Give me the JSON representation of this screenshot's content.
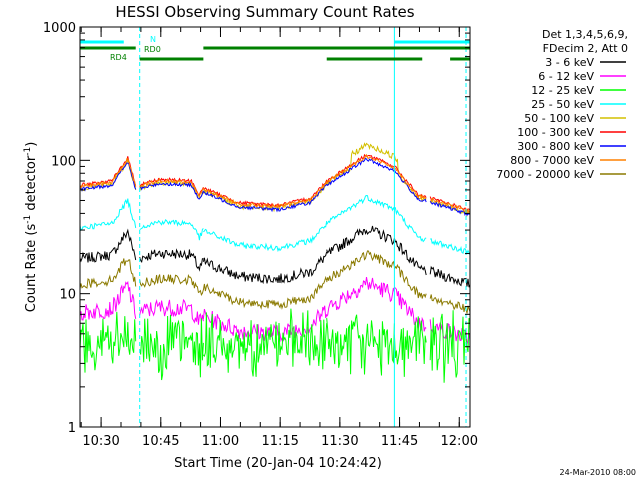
{
  "chart_data": {
    "type": "line",
    "title": "HESSI Observing Summary Count Rates",
    "xlabel": "Start Time (20-Jan-04 10:24:42)",
    "ylabel_parts": [
      "Count Rate (s",
      "-1",
      " detector",
      "-1",
      ")"
    ],
    "yscale": "log",
    "ylim": [
      1,
      1000
    ],
    "xlim_minutes_after_10_24_42": [
      0,
      98
    ],
    "x_tick_labels": [
      "10:30",
      "10:45",
      "11:00",
      "11:15",
      "11:30",
      "11:45",
      "12:00"
    ],
    "y_tick_labels": [
      "1",
      "10",
      "100",
      "1000"
    ],
    "legend_header": [
      "Det 1,3,4,5,6,9,",
      "FDecim 2, Att 0"
    ],
    "footer_date": "24-Mar-2010 08:00",
    "flag_labels": {
      "n": "N",
      "rd0": "RD0",
      "rd4": "RD4"
    },
    "colors": {
      "cyan_flag": "#00ffff",
      "green_flag": "#008000",
      "axis": "#000000"
    },
    "series": [
      {
        "name": "3 - 6 keV",
        "color": "#000000"
      },
      {
        "name": "6 - 12 keV",
        "color": "#ff00ff"
      },
      {
        "name": "12 - 25 keV",
        "color": "#00ff00"
      },
      {
        "name": "25 - 50 keV",
        "color": "#00ffff"
      },
      {
        "name": "50 - 100 keV",
        "color": "#d4c000"
      },
      {
        "name": "100 - 300 keV",
        "color": "#ff0000"
      },
      {
        "name": "300 - 800 keV",
        "color": "#0000ff"
      },
      {
        "name": "800 - 7000 keV",
        "color": "#ff8000"
      },
      {
        "name": "7000 - 20000 keV",
        "color": "#8b7a00"
      }
    ],
    "segments_minutes": [
      [
        0,
        14
      ],
      [
        15,
        31
      ],
      [
        31,
        62
      ],
      [
        62,
        79
      ],
      [
        79,
        87
      ],
      [
        88,
        98
      ]
    ],
    "dashed_markers_minutes": [
      15,
      97
    ],
    "solid_markers_minutes": [
      0,
      79
    ],
    "profiles": {
      "ordered": [
        {
          "t": 0,
          "v": 65
        },
        {
          "t": 8,
          "v": 70
        },
        {
          "t": 12,
          "v": 105
        },
        {
          "t": 14,
          "v": 65
        },
        {
          "t": 20,
          "v": 72
        },
        {
          "t": 28,
          "v": 70
        },
        {
          "t": 30,
          "v": 55
        },
        {
          "t": 31,
          "v": 62
        },
        {
          "t": 40,
          "v": 48
        },
        {
          "t": 50,
          "v": 46
        },
        {
          "t": 58,
          "v": 52
        },
        {
          "t": 62,
          "v": 70
        },
        {
          "t": 72,
          "v": 110
        },
        {
          "t": 79,
          "v": 90
        },
        {
          "t": 85,
          "v": 55
        },
        {
          "t": 92,
          "v": 48
        },
        {
          "t": 98,
          "v": 42
        }
      ]
    }
  }
}
